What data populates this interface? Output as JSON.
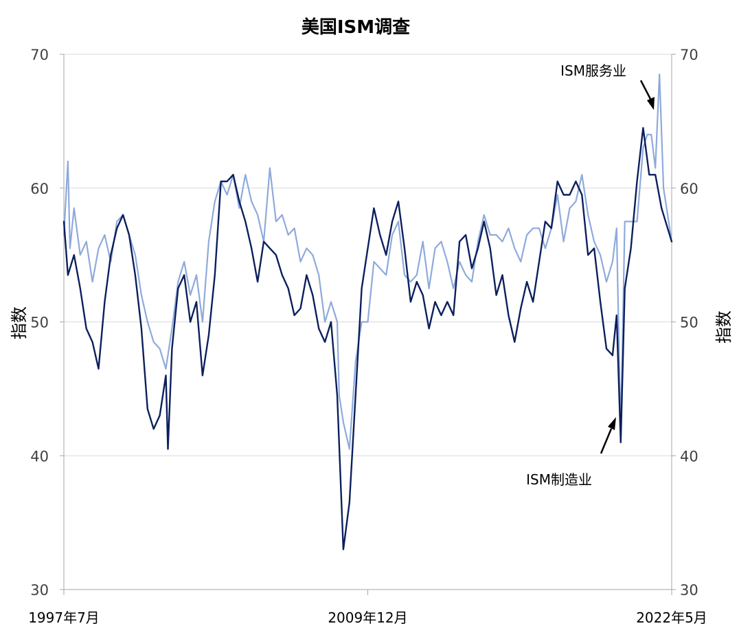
{
  "chart_data": {
    "type": "line",
    "title": "美国ISM调查",
    "ylabel_left": "指数",
    "ylabel_right": "指数",
    "ylim": [
      30,
      70
    ],
    "yticks": [
      "30",
      "40",
      "50",
      "60",
      "70"
    ],
    "x_tick_labels": [
      "1997年7月",
      "2009年12月",
      "2022年5月"
    ],
    "x_range": [
      "1997-07",
      "2022-05"
    ],
    "grid": true,
    "annotations": [
      {
        "text": "ISM服务业",
        "target_series": "ISM服务业"
      },
      {
        "text": "ISM制造业",
        "target_series": "ISM制造业"
      }
    ],
    "series": [
      {
        "name": "ISM服务业",
        "color": "#8eaadb",
        "points": [
          [
            "1997-07",
            56.5
          ],
          [
            "1997-09",
            62.0
          ],
          [
            "1997-10",
            55.5
          ],
          [
            "1997-12",
            58.5
          ],
          [
            "1998-03",
            55.0
          ],
          [
            "1998-06",
            56.0
          ],
          [
            "1998-09",
            53.0
          ],
          [
            "1998-12",
            55.5
          ],
          [
            "1999-03",
            56.5
          ],
          [
            "1999-06",
            54.5
          ],
          [
            "1999-09",
            57.5
          ],
          [
            "1999-12",
            58.0
          ],
          [
            "2000-03",
            56.5
          ],
          [
            "2000-06",
            55.0
          ],
          [
            "2000-09",
            52.0
          ],
          [
            "2000-12",
            50.0
          ],
          [
            "2001-03",
            48.5
          ],
          [
            "2001-06",
            48.0
          ],
          [
            "2001-09",
            46.5
          ],
          [
            "2001-12",
            49.5
          ],
          [
            "2002-03",
            53.0
          ],
          [
            "2002-06",
            54.5
          ],
          [
            "2002-09",
            52.0
          ],
          [
            "2002-12",
            53.5
          ],
          [
            "2003-03",
            50.0
          ],
          [
            "2003-06",
            56.0
          ],
          [
            "2003-09",
            59.0
          ],
          [
            "2003-12",
            60.5
          ],
          [
            "2004-03",
            59.5
          ],
          [
            "2004-06",
            61.0
          ],
          [
            "2004-09",
            58.5
          ],
          [
            "2004-12",
            61.0
          ],
          [
            "2005-03",
            59.0
          ],
          [
            "2005-06",
            58.0
          ],
          [
            "2005-09",
            56.0
          ],
          [
            "2005-12",
            61.5
          ],
          [
            "2006-03",
            57.5
          ],
          [
            "2006-06",
            58.0
          ],
          [
            "2006-09",
            56.5
          ],
          [
            "2006-12",
            57.0
          ],
          [
            "2007-03",
            54.5
          ],
          [
            "2007-06",
            55.5
          ],
          [
            "2007-09",
            55.0
          ],
          [
            "2007-12",
            53.5
          ],
          [
            "2008-03",
            50.0
          ],
          [
            "2008-06",
            51.5
          ],
          [
            "2008-09",
            50.0
          ],
          [
            "2008-10",
            44.5
          ],
          [
            "2008-12",
            42.5
          ],
          [
            "2009-03",
            40.5
          ],
          [
            "2009-06",
            47.0
          ],
          [
            "2009-09",
            50.0
          ],
          [
            "2009-12",
            50.0
          ],
          [
            "2010-03",
            54.5
          ],
          [
            "2010-06",
            54.0
          ],
          [
            "2010-09",
            53.5
          ],
          [
            "2010-12",
            56.5
          ],
          [
            "2011-03",
            57.5
          ],
          [
            "2011-06",
            53.5
          ],
          [
            "2011-09",
            53.0
          ],
          [
            "2011-12",
            53.5
          ],
          [
            "2012-03",
            56.0
          ],
          [
            "2012-06",
            52.5
          ],
          [
            "2012-09",
            55.5
          ],
          [
            "2012-12",
            56.0
          ],
          [
            "2013-03",
            54.5
          ],
          [
            "2013-06",
            52.5
          ],
          [
            "2013-09",
            54.5
          ],
          [
            "2013-12",
            53.5
          ],
          [
            "2014-03",
            53.0
          ],
          [
            "2014-06",
            56.0
          ],
          [
            "2014-09",
            58.0
          ],
          [
            "2014-12",
            56.5
          ],
          [
            "2015-03",
            56.5
          ],
          [
            "2015-06",
            56.0
          ],
          [
            "2015-09",
            57.0
          ],
          [
            "2015-12",
            55.5
          ],
          [
            "2016-03",
            54.5
          ],
          [
            "2016-06",
            56.5
          ],
          [
            "2016-09",
            57.0
          ],
          [
            "2016-12",
            57.0
          ],
          [
            "2017-03",
            55.5
          ],
          [
            "2017-06",
            57.0
          ],
          [
            "2017-09",
            59.5
          ],
          [
            "2017-12",
            56.0
          ],
          [
            "2018-03",
            58.5
          ],
          [
            "2018-06",
            59.0
          ],
          [
            "2018-09",
            61.0
          ],
          [
            "2018-12",
            58.0
          ],
          [
            "2019-03",
            56.0
          ],
          [
            "2019-06",
            55.0
          ],
          [
            "2019-09",
            53.0
          ],
          [
            "2019-12",
            54.5
          ],
          [
            "2020-02",
            57.0
          ],
          [
            "2020-04",
            41.5
          ],
          [
            "2020-06",
            57.5
          ],
          [
            "2020-09",
            57.5
          ],
          [
            "2020-12",
            57.5
          ],
          [
            "2021-03",
            63.0
          ],
          [
            "2021-05",
            64.0
          ],
          [
            "2021-07",
            64.0
          ],
          [
            "2021-09",
            61.5
          ],
          [
            "2021-11",
            68.5
          ],
          [
            "2022-01",
            60.0
          ],
          [
            "2022-03",
            58.0
          ],
          [
            "2022-05",
            56.0
          ]
        ]
      },
      {
        "name": "ISM制造业",
        "color": "#0b1f5c",
        "points": [
          [
            "1997-07",
            57.5
          ],
          [
            "1997-09",
            53.5
          ],
          [
            "1997-12",
            55.0
          ],
          [
            "1998-03",
            52.5
          ],
          [
            "1998-06",
            49.5
          ],
          [
            "1998-09",
            48.5
          ],
          [
            "1998-12",
            46.5
          ],
          [
            "1999-03",
            51.5
          ],
          [
            "1999-06",
            55.0
          ],
          [
            "1999-09",
            57.0
          ],
          [
            "1999-12",
            58.0
          ],
          [
            "2000-03",
            56.5
          ],
          [
            "2000-06",
            53.5
          ],
          [
            "2000-09",
            49.5
          ],
          [
            "2000-12",
            43.5
          ],
          [
            "2001-03",
            42.0
          ],
          [
            "2001-06",
            43.0
          ],
          [
            "2001-09",
            46.0
          ],
          [
            "2001-10",
            40.5
          ],
          [
            "2001-12",
            48.0
          ],
          [
            "2002-03",
            52.5
          ],
          [
            "2002-06",
            53.5
          ],
          [
            "2002-09",
            50.0
          ],
          [
            "2002-12",
            51.5
          ],
          [
            "2003-03",
            46.0
          ],
          [
            "2003-06",
            49.0
          ],
          [
            "2003-09",
            53.5
          ],
          [
            "2003-12",
            60.5
          ],
          [
            "2004-03",
            60.5
          ],
          [
            "2004-06",
            61.0
          ],
          [
            "2004-09",
            59.0
          ],
          [
            "2004-12",
            57.5
          ],
          [
            "2005-03",
            55.5
          ],
          [
            "2005-06",
            53.0
          ],
          [
            "2005-09",
            56.0
          ],
          [
            "2005-12",
            55.5
          ],
          [
            "2006-03",
            55.0
          ],
          [
            "2006-06",
            53.5
          ],
          [
            "2006-09",
            52.5
          ],
          [
            "2006-12",
            50.5
          ],
          [
            "2007-03",
            51.0
          ],
          [
            "2007-06",
            53.5
          ],
          [
            "2007-09",
            52.0
          ],
          [
            "2007-12",
            49.5
          ],
          [
            "2008-03",
            48.5
          ],
          [
            "2008-06",
            50.0
          ],
          [
            "2008-09",
            44.5
          ],
          [
            "2008-12",
            33.0
          ],
          [
            "2009-03",
            36.5
          ],
          [
            "2009-06",
            44.5
          ],
          [
            "2009-09",
            52.5
          ],
          [
            "2009-12",
            55.5
          ],
          [
            "2010-03",
            58.5
          ],
          [
            "2010-06",
            56.5
          ],
          [
            "2010-09",
            55.0
          ],
          [
            "2010-12",
            57.5
          ],
          [
            "2011-03",
            59.0
          ],
          [
            "2011-06",
            55.5
          ],
          [
            "2011-09",
            51.5
          ],
          [
            "2011-12",
            53.0
          ],
          [
            "2012-03",
            52.0
          ],
          [
            "2012-06",
            49.5
          ],
          [
            "2012-09",
            51.5
          ],
          [
            "2012-12",
            50.5
          ],
          [
            "2013-03",
            51.5
          ],
          [
            "2013-06",
            50.5
          ],
          [
            "2013-09",
            56.0
          ],
          [
            "2013-12",
            56.5
          ],
          [
            "2014-03",
            54.0
          ],
          [
            "2014-06",
            55.5
          ],
          [
            "2014-09",
            57.5
          ],
          [
            "2014-12",
            55.5
          ],
          [
            "2015-03",
            52.0
          ],
          [
            "2015-06",
            53.5
          ],
          [
            "2015-09",
            50.5
          ],
          [
            "2015-12",
            48.5
          ],
          [
            "2016-03",
            51.0
          ],
          [
            "2016-06",
            53.0
          ],
          [
            "2016-09",
            51.5
          ],
          [
            "2016-12",
            54.5
          ],
          [
            "2017-03",
            57.5
          ],
          [
            "2017-06",
            57.0
          ],
          [
            "2017-09",
            60.5
          ],
          [
            "2017-12",
            59.5
          ],
          [
            "2018-03",
            59.5
          ],
          [
            "2018-06",
            60.5
          ],
          [
            "2018-09",
            59.5
          ],
          [
            "2018-12",
            55.0
          ],
          [
            "2019-03",
            55.5
          ],
          [
            "2019-06",
            51.5
          ],
          [
            "2019-09",
            48.0
          ],
          [
            "2019-12",
            47.5
          ],
          [
            "2020-02",
            50.5
          ],
          [
            "2020-04",
            41.0
          ],
          [
            "2020-06",
            52.5
          ],
          [
            "2020-09",
            55.5
          ],
          [
            "2020-12",
            60.5
          ],
          [
            "2021-03",
            64.5
          ],
          [
            "2021-06",
            61.0
          ],
          [
            "2021-09",
            61.0
          ],
          [
            "2021-12",
            58.5
          ],
          [
            "2022-03",
            57.0
          ],
          [
            "2022-05",
            56.0
          ]
        ]
      }
    ]
  }
}
